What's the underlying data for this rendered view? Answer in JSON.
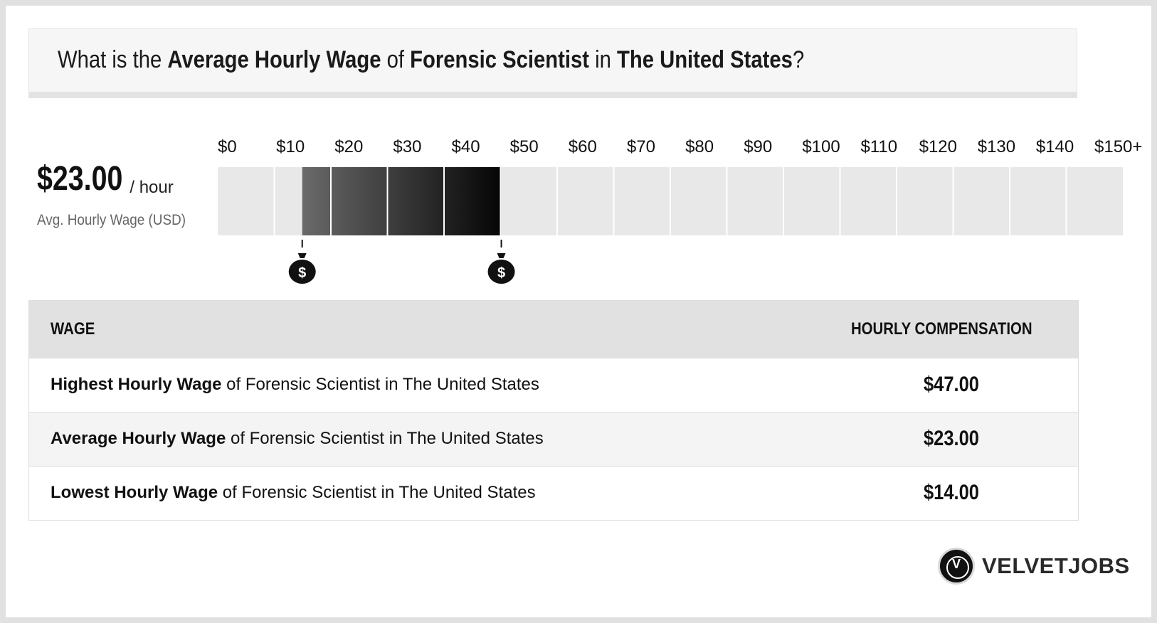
{
  "header": {
    "p1": "What is the ",
    "b1": "Average Hourly Wage",
    "p2": " of ",
    "b2": "Forensic Scientist",
    "p3": " in ",
    "b3": "The United States",
    "p4": "?"
  },
  "summary": {
    "value": "$23.00",
    "unit": "/ hour",
    "label": "Avg. Hourly Wage (USD)"
  },
  "chart_data": {
    "type": "bar",
    "x_ticks": [
      "$0",
      "$10",
      "$20",
      "$30",
      "$40",
      "$50",
      "$60",
      "$70",
      "$80",
      "$90",
      "$100",
      "$110",
      "$120",
      "$130",
      "$140",
      "$150+"
    ],
    "xlim": [
      0,
      150
    ],
    "range_low": 14,
    "range_high": 47,
    "average": 23,
    "markers": [
      {
        "value": 14,
        "icon": "money-bag-icon",
        "glyph": "$"
      },
      {
        "value": 47,
        "icon": "money-bag-icon",
        "glyph": "$"
      }
    ],
    "colors": {
      "empty": "#e8e8e8",
      "low": "#6a6a6a",
      "high": "#050505"
    }
  },
  "table": {
    "headers": {
      "wage": "WAGE",
      "comp": "HOURLY COMPENSATION"
    },
    "rows": [
      {
        "bold": "Highest Hourly Wage",
        "rest": " of Forensic Scientist in The United States",
        "value": "$47.00"
      },
      {
        "bold": "Average Hourly Wage",
        "rest": " of Forensic Scientist in The United States",
        "value": "$23.00"
      },
      {
        "bold": "Lowest Hourly Wage",
        "rest": " of Forensic Scientist in The United States",
        "value": "$14.00"
      }
    ]
  },
  "brand": {
    "initial": "V",
    "name": "VELVETJOBS"
  }
}
